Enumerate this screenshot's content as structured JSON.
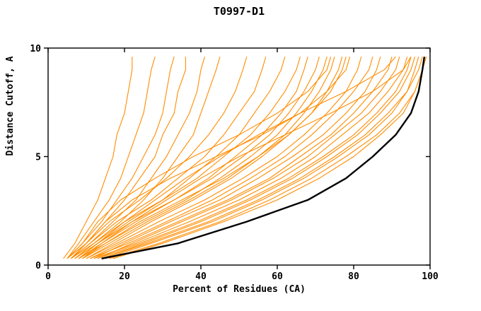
{
  "window": {
    "title": "T0997-D1"
  },
  "chart_data": {
    "type": "line",
    "title": "T0997-D1",
    "xlabel": "Percent of Residues (CA)",
    "ylabel": "Distance Cutoff, A",
    "xlim": [
      0,
      100
    ],
    "ylim": [
      0,
      10
    ],
    "xticks": [
      0,
      20,
      40,
      60,
      80,
      100
    ],
    "yticks": [
      0,
      5,
      10
    ],
    "grid": false,
    "legend_position": "none",
    "colors": {
      "prediction": "#ff8c00",
      "reference": "#000000",
      "axis": "#000000",
      "background": "#ffffff"
    },
    "y_levels": [
      0.3,
      1,
      2,
      3,
      4,
      5,
      6,
      7,
      8,
      9,
      9.6
    ],
    "reference_series": {
      "name": "best-model-black-line",
      "x": [
        14,
        34,
        52,
        68,
        78,
        85,
        91,
        95,
        97,
        98,
        98.5
      ]
    },
    "prediction_series": [
      [
        4,
        7,
        10,
        13,
        15,
        17,
        18,
        20,
        21,
        22,
        22
      ],
      [
        5,
        8,
        12,
        16,
        19,
        21,
        23,
        25,
        26,
        27,
        28
      ],
      [
        5,
        9,
        14,
        18,
        22,
        25,
        28,
        30,
        31,
        32,
        33
      ],
      [
        6,
        10,
        15,
        20,
        24,
        28,
        30,
        33,
        34,
        36,
        36
      ],
      [
        6,
        11,
        17,
        23,
        27,
        31,
        34,
        37,
        39,
        40,
        41
      ],
      [
        7,
        12,
        19,
        25,
        30,
        34,
        38,
        40,
        42,
        44,
        45
      ],
      [
        5,
        10,
        16,
        24,
        31,
        37,
        42,
        46,
        49,
        51,
        52
      ],
      [
        6,
        11,
        18,
        27,
        34,
        41,
        46,
        50,
        54,
        56,
        57
      ],
      [
        7,
        13,
        21,
        30,
        37,
        44,
        50,
        54,
        58,
        61,
        62
      ],
      [
        6,
        12,
        20,
        30,
        39,
        46,
        53,
        58,
        62,
        65,
        66
      ],
      [
        8,
        14,
        23,
        33,
        42,
        49,
        56,
        61,
        65,
        67,
        68
      ],
      [
        7,
        13,
        22,
        33,
        43,
        51,
        58,
        63,
        67,
        70,
        71
      ],
      [
        8,
        15,
        25,
        36,
        45,
        53,
        60,
        65,
        69,
        72,
        73
      ],
      [
        9,
        16,
        26,
        37,
        47,
        55,
        62,
        67,
        71,
        74,
        75
      ],
      [
        10,
        17,
        27,
        38,
        48,
        56,
        63,
        69,
        73,
        76,
        77
      ],
      [
        9,
        15,
        24,
        35,
        46,
        55,
        63,
        69,
        74,
        77,
        78
      ],
      [
        10,
        18,
        29,
        41,
        51,
        60,
        67,
        73,
        78,
        81,
        82
      ],
      [
        11,
        19,
        31,
        43,
        53,
        62,
        69,
        75,
        80,
        84,
        85
      ],
      [
        12,
        20,
        32,
        45,
        55,
        64,
        72,
        78,
        83,
        86,
        87
      ],
      [
        11,
        21,
        34,
        47,
        58,
        66,
        74,
        80,
        85,
        89,
        90
      ],
      [
        13,
        22,
        35,
        48,
        59,
        68,
        75,
        82,
        87,
        91,
        92
      ],
      [
        12,
        23,
        37,
        50,
        61,
        70,
        77,
        84,
        89,
        93,
        94
      ],
      [
        14,
        25,
        40,
        53,
        64,
        73,
        81,
        87,
        92,
        95,
        96
      ],
      [
        15,
        27,
        43,
        56,
        67,
        76,
        84,
        90,
        94,
        97,
        98
      ],
      [
        16,
        29,
        45,
        58,
        69,
        78,
        86,
        92,
        96,
        98,
        99
      ],
      [
        14,
        26,
        42,
        55,
        66,
        75,
        83,
        89,
        94,
        96,
        97
      ],
      [
        17,
        30,
        46,
        60,
        71,
        80,
        87,
        93,
        96,
        98,
        99
      ],
      [
        13,
        24,
        39,
        52,
        63,
        72,
        80,
        86,
        91,
        94,
        95
      ],
      [
        5,
        9,
        13,
        19,
        28,
        38,
        50,
        60,
        68,
        73,
        74
      ],
      [
        6,
        10,
        15,
        22,
        32,
        44,
        56,
        66,
        73,
        78,
        79
      ],
      [
        8,
        13,
        20,
        28,
        36,
        45,
        55,
        66,
        78,
        88,
        91
      ],
      [
        9,
        14,
        22,
        31,
        40,
        50,
        62,
        74,
        85,
        93,
        95
      ]
    ]
  }
}
